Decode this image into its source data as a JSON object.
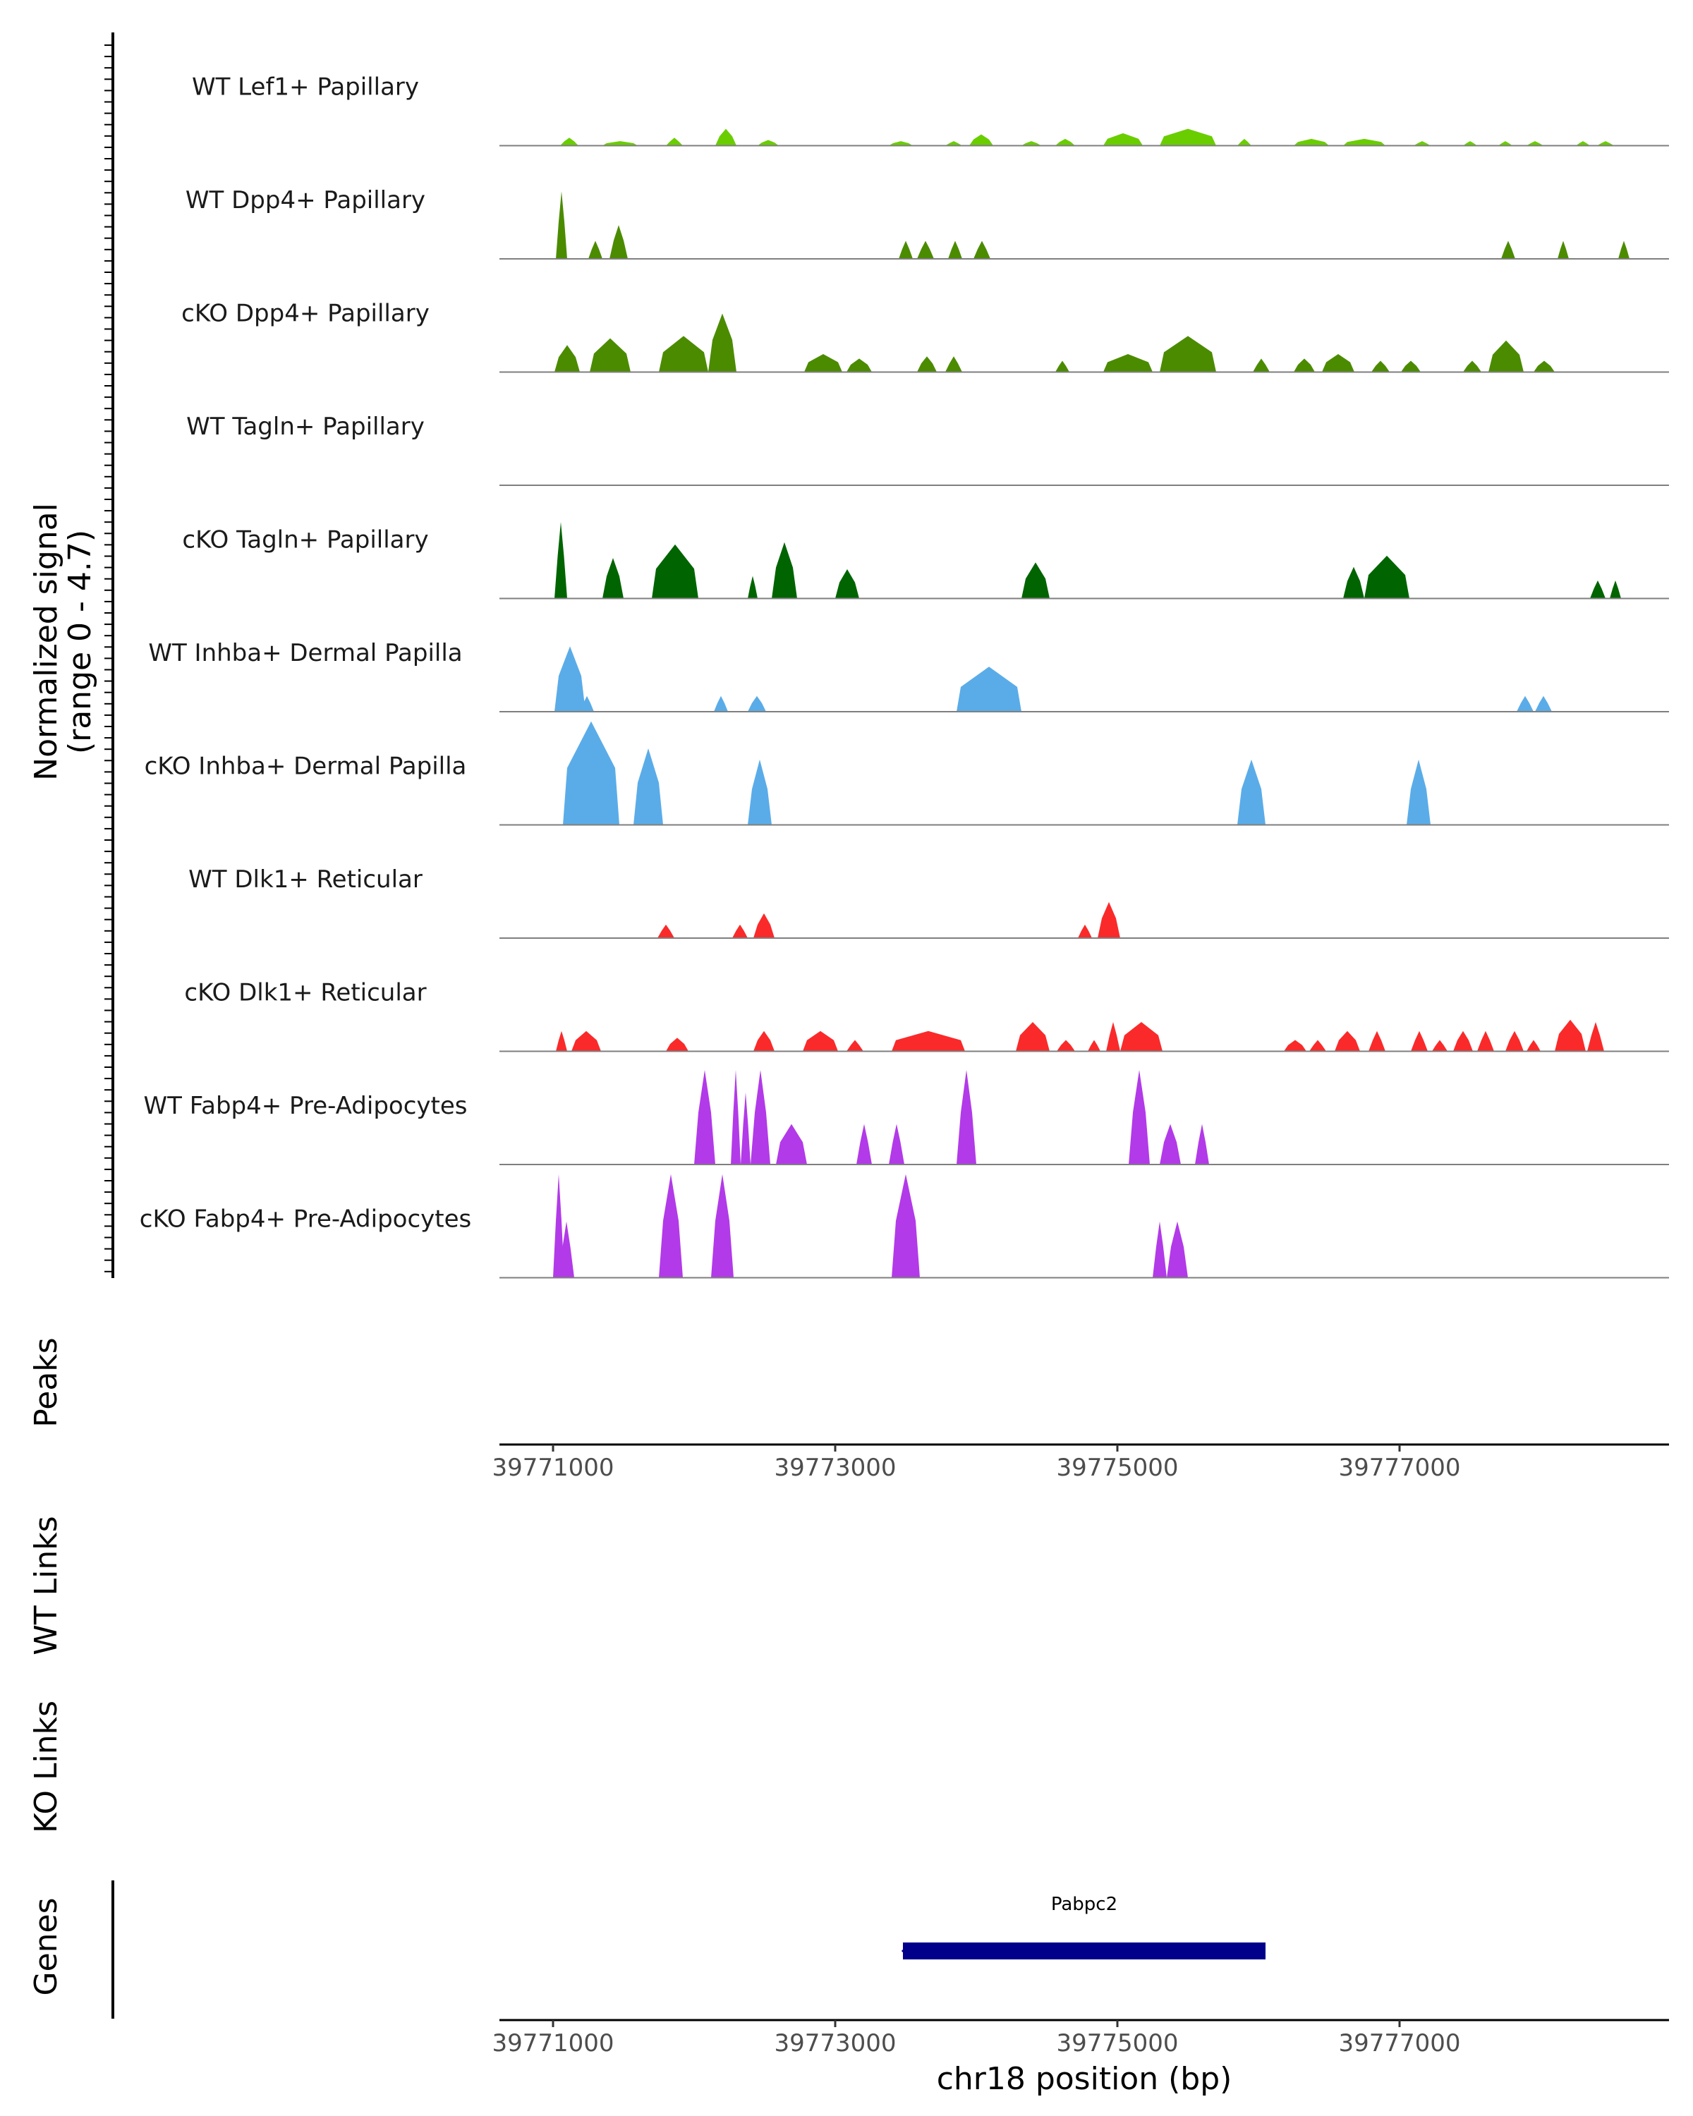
{
  "chart_data": {
    "type": "area",
    "title": "",
    "chromosome": "chr18",
    "xlabel": "chr18 position (bp)",
    "xlim": [
      39770620,
      39778910
    ],
    "x_ticks": [
      39771000,
      39773000,
      39775000,
      39777000
    ],
    "x_tick_labels": [
      "39771000",
      "39773000",
      "39775000",
      "39777000"
    ],
    "ylabel": "Normalized signal",
    "ylabel_range": "(range 0 - 4.7)",
    "ylim": [
      0,
      4.7
    ],
    "panel_labels": {
      "peaks": "Peaks",
      "wt_links": "WT Links",
      "ko_links": "KO Links",
      "genes": "Genes"
    },
    "series": [
      {
        "name": "WT Lef1+ Papillary",
        "color": "#6acd00",
        "peaks": [
          [
            39771050,
            39771180,
            0.35
          ],
          [
            39771350,
            39771600,
            0.2
          ],
          [
            39771800,
            39771920,
            0.35
          ],
          [
            39772150,
            39772300,
            0.75
          ],
          [
            39772450,
            39772600,
            0.25
          ],
          [
            39773380,
            39773550,
            0.2
          ],
          [
            39773780,
            39773900,
            0.2
          ],
          [
            39773950,
            39774120,
            0.5
          ],
          [
            39774320,
            39774460,
            0.2
          ],
          [
            39774560,
            39774700,
            0.3
          ],
          [
            39774900,
            39775180,
            0.55
          ],
          [
            39775300,
            39775700,
            0.75
          ],
          [
            39775850,
            39775950,
            0.3
          ],
          [
            39776250,
            39776500,
            0.3
          ],
          [
            39776600,
            39776900,
            0.3
          ],
          [
            39777100,
            39777220,
            0.2
          ],
          [
            39777450,
            39777550,
            0.2
          ],
          [
            39777700,
            39777800,
            0.2
          ],
          [
            39777900,
            39778020,
            0.2
          ],
          [
            39778250,
            39778350,
            0.2
          ],
          [
            39778400,
            39778520,
            0.2
          ]
        ]
      },
      {
        "name": "WT Dpp4+ Papillary",
        "color": "#4b8b00",
        "peaks": [
          [
            39771020,
            39771100,
            3.0
          ],
          [
            39771250,
            39771350,
            0.8
          ],
          [
            39771400,
            39771530,
            1.5
          ],
          [
            39773450,
            39773550,
            0.8
          ],
          [
            39773580,
            39773700,
            0.8
          ],
          [
            39773800,
            39773900,
            0.8
          ],
          [
            39773980,
            39774100,
            0.8
          ],
          [
            39777720,
            39777820,
            0.8
          ],
          [
            39778120,
            39778200,
            0.8
          ],
          [
            39778550,
            39778630,
            0.8
          ]
        ]
      },
      {
        "name": "cKO Dpp4+ Papillary",
        "color": "#4b8b00",
        "peaks": [
          [
            39771010,
            39771190,
            1.2
          ],
          [
            39771260,
            39771550,
            1.5
          ],
          [
            39771750,
            39772100,
            1.6
          ],
          [
            39772100,
            39772300,
            2.6
          ],
          [
            39772780,
            39773050,
            0.8
          ],
          [
            39773080,
            39773260,
            0.6
          ],
          [
            39773580,
            39773720,
            0.7
          ],
          [
            39773780,
            39773900,
            0.7
          ],
          [
            39774560,
            39774660,
            0.5
          ],
          [
            39774900,
            39775250,
            0.8
          ],
          [
            39775300,
            39775700,
            1.6
          ],
          [
            39775960,
            39776080,
            0.6
          ],
          [
            39776250,
            39776400,
            0.6
          ],
          [
            39776450,
            39776680,
            0.8
          ],
          [
            39776800,
            39776930,
            0.5
          ],
          [
            39777010,
            39777150,
            0.5
          ],
          [
            39777450,
            39777580,
            0.5
          ],
          [
            39777630,
            39777880,
            1.4
          ],
          [
            39777950,
            39778100,
            0.5
          ]
        ]
      },
      {
        "name": "WT Tagln+ Papillary",
        "color": "#006400",
        "peaks": []
      },
      {
        "name": "cKO Tagln+ Papillary",
        "color": "#006400",
        "peaks": [
          [
            39771010,
            39771100,
            3.4
          ],
          [
            39771350,
            39771500,
            1.8
          ],
          [
            39771700,
            39772030,
            2.4
          ],
          [
            39772380,
            39772450,
            1.0
          ],
          [
            39772550,
            39772730,
            2.5
          ],
          [
            39773000,
            39773170,
            1.3
          ],
          [
            39774320,
            39774520,
            1.6
          ],
          [
            39776600,
            39776750,
            1.4
          ],
          [
            39776750,
            39777070,
            1.9
          ],
          [
            39778350,
            39778460,
            0.8
          ],
          [
            39778490,
            39778570,
            0.8
          ]
        ]
      },
      {
        "name": "WT Inhba+ Dermal Papilla",
        "color": "#5aace8",
        "peaks": [
          [
            39771010,
            39771230,
            2.9
          ],
          [
            39771170,
            39771230,
            0.7
          ],
          [
            39771190,
            39771290,
            0.7
          ],
          [
            39772140,
            39772240,
            0.7
          ],
          [
            39772380,
            39772510,
            0.7
          ],
          [
            39773860,
            39774320,
            2.0
          ],
          [
            39777830,
            39777950,
            0.7
          ],
          [
            39777960,
            39778080,
            0.7
          ]
        ]
      },
      {
        "name": "cKO Inhba+ Dermal Papilla",
        "color": "#5aace8",
        "peaks": [
          [
            39771070,
            39771470,
            4.6
          ],
          [
            39771570,
            39771780,
            3.4
          ],
          [
            39772380,
            39772550,
            2.9
          ],
          [
            39775850,
            39776050,
            2.9
          ],
          [
            39777050,
            39777220,
            2.9
          ]
        ]
      },
      {
        "name": "WT Dlk1+ Reticular",
        "color": "#fa2a2a",
        "peaks": [
          [
            39771740,
            39771860,
            0.6
          ],
          [
            39772270,
            39772380,
            0.6
          ],
          [
            39772420,
            39772570,
            1.1
          ],
          [
            39774720,
            39774820,
            0.6
          ],
          [
            39774860,
            39775020,
            1.6
          ]
        ]
      },
      {
        "name": "cKO Dlk1+ Reticular",
        "color": "#fa2a2a",
        "peaks": [
          [
            39771020,
            39771100,
            0.9
          ],
          [
            39771130,
            39771340,
            0.9
          ],
          [
            39771800,
            39771960,
            0.6
          ],
          [
            39772420,
            39772570,
            0.9
          ],
          [
            39772770,
            39773020,
            0.9
          ],
          [
            39773080,
            39773200,
            0.5
          ],
          [
            39773400,
            39773920,
            0.9
          ],
          [
            39774280,
            39774520,
            1.3
          ],
          [
            39774570,
            39774700,
            0.5
          ],
          [
            39774790,
            39774880,
            0.5
          ],
          [
            39774920,
            39775020,
            1.3
          ],
          [
            39775020,
            39775320,
            1.3
          ],
          [
            39776180,
            39776340,
            0.5
          ],
          [
            39776360,
            39776480,
            0.5
          ],
          [
            39776540,
            39776720,
            0.9
          ],
          [
            39776780,
            39776900,
            0.9
          ],
          [
            39777080,
            39777200,
            0.9
          ],
          [
            39777230,
            39777340,
            0.5
          ],
          [
            39777380,
            39777520,
            0.9
          ],
          [
            39777550,
            39777670,
            0.9
          ],
          [
            39777750,
            39777880,
            0.9
          ],
          [
            39777900,
            39778000,
            0.5
          ],
          [
            39778100,
            39778320,
            1.4
          ],
          [
            39778330,
            39778450,
            1.3
          ]
        ]
      },
      {
        "name": "WT Fabp4+ Pre-Adipocytes",
        "color": "#b23ae8",
        "peaks": [
          [
            39772000,
            39772150,
            4.2
          ],
          [
            39772260,
            39772330,
            4.2
          ],
          [
            39772330,
            39772400,
            3.2
          ],
          [
            39772400,
            39772540,
            4.2
          ],
          [
            39772580,
            39772800,
            1.8
          ],
          [
            39773150,
            39773260,
            1.8
          ],
          [
            39773380,
            39773490,
            1.8
          ],
          [
            39773860,
            39774000,
            4.2
          ],
          [
            39775080,
            39775230,
            4.2
          ],
          [
            39775300,
            39775450,
            1.8
          ],
          [
            39775550,
            39775650,
            1.8
          ]
        ]
      },
      {
        "name": "cKO Fabp4+ Pre-Adipocytes",
        "color": "#b23ae8",
        "peaks": [
          [
            39771000,
            39771080,
            4.6
          ],
          [
            39771040,
            39771150,
            2.5
          ],
          [
            39771750,
            39771920,
            4.6
          ],
          [
            39772120,
            39772280,
            4.6
          ],
          [
            39773400,
            39773600,
            4.6
          ],
          [
            39775250,
            39775350,
            2.5
          ],
          [
            39775350,
            39775500,
            2.5
          ]
        ]
      }
    ],
    "peaks_track": [],
    "wt_links": [],
    "ko_links": [],
    "genes": [
      {
        "name": "Pabpc2",
        "start": 39773480,
        "end": 39776050,
        "strand": "-",
        "color": "#00008b"
      }
    ]
  }
}
